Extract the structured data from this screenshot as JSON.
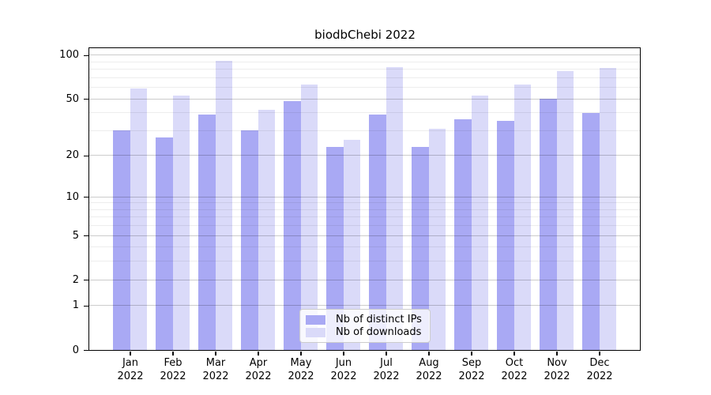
{
  "title": "biodbChebi 2022",
  "legend": {
    "items": [
      {
        "label": "Nb of distinct IPs",
        "color": "#a9a9f4"
      },
      {
        "label": "Nb of downloads",
        "color": "#dadaf9"
      }
    ]
  },
  "chart_data": {
    "type": "bar",
    "title": "biodbChebi 2022",
    "categories": [
      "Jan 2022",
      "Feb 2022",
      "Mar 2022",
      "Apr 2022",
      "May 2022",
      "Jun 2022",
      "Jul 2022",
      "Aug 2022",
      "Sep 2022",
      "Oct 2022",
      "Nov 2022",
      "Dec 2022"
    ],
    "series": [
      {
        "name": "Nb of distinct IPs",
        "color": "#a9a9f4",
        "values": [
          30,
          27,
          39,
          30,
          48,
          23,
          39,
          23,
          36,
          35,
          50,
          40
        ]
      },
      {
        "name": "Nb of downloads",
        "color": "#dadaf9",
        "values": [
          59,
          53,
          92,
          42,
          63,
          26,
          83,
          31,
          53,
          63,
          78,
          82
        ]
      }
    ],
    "xlabel": "",
    "ylabel": "",
    "yscale": "log1p",
    "ylim": [
      0,
      110
    ],
    "y_major_ticks": [
      0,
      1,
      2,
      5,
      10,
      20,
      50,
      100
    ],
    "y_minor_gridlines": [
      3,
      4,
      6,
      7,
      8,
      9,
      30,
      40,
      60,
      70,
      80,
      90
    ],
    "grid": true,
    "legend_position": "lower center (inside axes)"
  }
}
